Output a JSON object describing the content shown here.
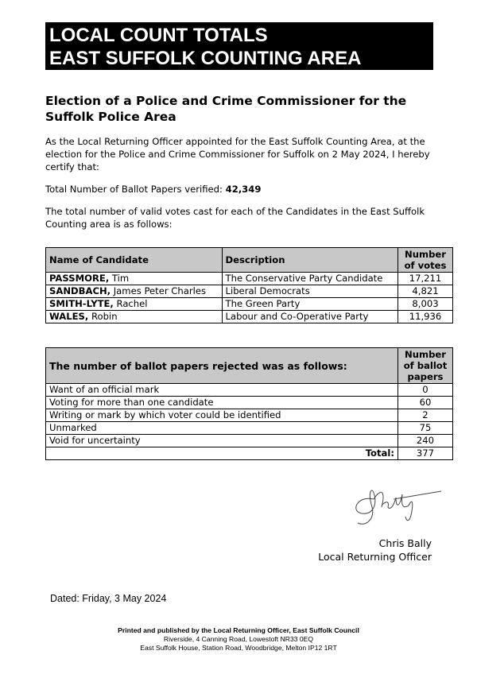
{
  "title": {
    "line1": "LOCAL COUNT TOTALS",
    "line2": "EAST SUFFOLK COUNTING AREA"
  },
  "heading": "Election of a Police and Crime Commissioner for the Suffolk Police Area",
  "intro": "As the Local Returning Officer appointed for the East Suffolk Counting Area, at the election for the Police and Crime Commissioner for Suffolk on 2 May 2024, I hereby certify that:",
  "verified": {
    "label": "Total Number of Ballot Papers verified:",
    "value": "42,349"
  },
  "votes_intro": "The total number of valid votes cast for each of the Candidates in the East Suffolk Counting area is as follows:",
  "candidates": {
    "headers": [
      "Name of Candidate",
      "Description",
      "Number of votes"
    ],
    "rows": [
      {
        "surname": "PASSMORE,",
        "forename": "Tim",
        "description": "The Conservative Party Candidate",
        "votes": "17,211"
      },
      {
        "surname": "SANDBACH,",
        "forename": "James Peter Charles",
        "description": "Liberal Democrats",
        "votes": "4,821"
      },
      {
        "surname": "SMITH-LYTE,",
        "forename": "Rachel",
        "description": "The Green Party",
        "votes": "8,003"
      },
      {
        "surname": "WALES,",
        "forename": "Robin",
        "description": "Labour and Co-Operative Party",
        "votes": "11,936"
      }
    ]
  },
  "rejected": {
    "headers": [
      "The number of ballot papers rejected was as follows:",
      "Number of ballot papers"
    ],
    "rows": [
      {
        "reason": "Want of an official mark",
        "count": "0"
      },
      {
        "reason": "Voting for more than one candidate",
        "count": "60"
      },
      {
        "reason": "Writing or mark by which voter could be identified",
        "count": "2"
      },
      {
        "reason": "Unmarked",
        "count": "75"
      },
      {
        "reason": "Void for uncertainty",
        "count": "240"
      }
    ],
    "total_label": "Total:",
    "total": "377"
  },
  "signature": "Bally",
  "officer": {
    "name": "Chris Bally",
    "role": "Local Returning Officer"
  },
  "dated": "Dated: Friday, 3 May 2024",
  "footer": {
    "line1": "Printed and published by the Local Returning Officer, East Suffolk Council",
    "line2": "Riverside, 4 Canning Road, Lowestoft NR33 0EQ",
    "line3": "East Suffolk House, Station Road, Woodbridge, Melton IP12 1RT"
  }
}
